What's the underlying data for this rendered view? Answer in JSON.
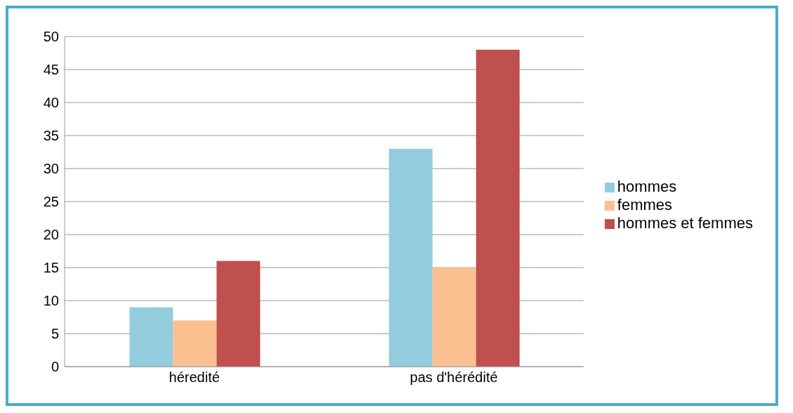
{
  "chart_data": {
    "type": "bar",
    "categories": [
      "héredité",
      "pas d'hérédité"
    ],
    "series": [
      {
        "name": "hommes",
        "color": "#93cddd",
        "values": [
          9,
          33
        ]
      },
      {
        "name": "femmes",
        "color": "#fac090",
        "values": [
          7,
          15
        ]
      },
      {
        "name": "hommes et femmes",
        "color": "#c0504d",
        "values": [
          16,
          48
        ]
      }
    ],
    "ylim": [
      0,
      50
    ],
    "yticks": [
      0,
      5,
      10,
      15,
      20,
      25,
      30,
      35,
      40,
      45,
      50
    ],
    "grid": "y",
    "legend": "right"
  }
}
